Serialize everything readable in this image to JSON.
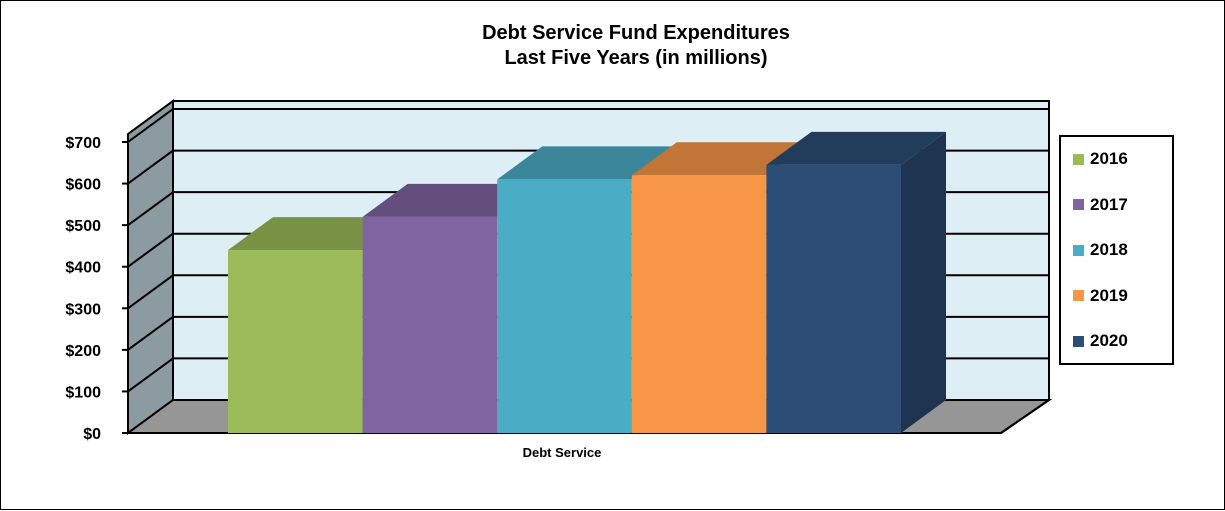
{
  "chart_data": {
    "type": "bar",
    "title": "Debt Service Fund Expenditures",
    "subtitle": "Last Five Years (in millions)",
    "categories": [
      "Debt Service"
    ],
    "series": [
      {
        "name": "2016",
        "values": [
          440
        ],
        "color": "#9BBB59"
      },
      {
        "name": "2017",
        "values": [
          520
        ],
        "color": "#8064A2"
      },
      {
        "name": "2018",
        "values": [
          610
        ],
        "color": "#4BACC6"
      },
      {
        "name": "2019",
        "values": [
          620
        ],
        "color": "#F79646"
      },
      {
        "name": "2020",
        "values": [
          645
        ],
        "color": "#2C4D75"
      }
    ],
    "yticks": [
      "$0",
      "$100",
      "$200",
      "$300",
      "$400",
      "$500",
      "$600",
      "$700"
    ],
    "ylim": [
      0,
      700
    ],
    "grid": true,
    "legend_position": "right",
    "colors": {
      "plot_background": "#DDEEF5",
      "floor": "#969696",
      "side_wall": "#8C9AA2"
    }
  }
}
